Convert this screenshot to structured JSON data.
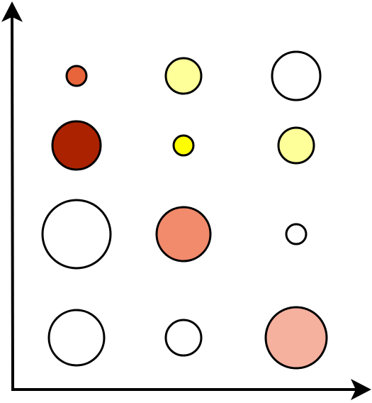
{
  "diagram": {
    "type": "bubble-grid",
    "rows": 4,
    "columns": 3,
    "axes": {
      "x_axis": {
        "has_arrow": true,
        "color": "#000000"
      },
      "y_axis": {
        "has_arrow": true,
        "color": "#000000"
      }
    },
    "bubbles": [
      {
        "row": 1,
        "column": 1,
        "fill": "#e8643a",
        "size": "small"
      },
      {
        "row": 1,
        "column": 2,
        "fill": "#ffff99",
        "size": "medium"
      },
      {
        "row": 1,
        "column": 3,
        "fill": "#ffffff",
        "size": "large"
      },
      {
        "row": 2,
        "column": 1,
        "fill": "#aa2200",
        "size": "large"
      },
      {
        "row": 2,
        "column": 2,
        "fill": "#ffff00",
        "size": "small"
      },
      {
        "row": 2,
        "column": 3,
        "fill": "#ffff99",
        "size": "medium"
      },
      {
        "row": 3,
        "column": 1,
        "fill": "#ffffff",
        "size": "extra-large"
      },
      {
        "row": 3,
        "column": 2,
        "fill": "#f28a6c",
        "size": "large"
      },
      {
        "row": 3,
        "column": 3,
        "fill": "#ffffff",
        "size": "small"
      },
      {
        "row": 4,
        "column": 1,
        "fill": "#ffffff",
        "size": "large"
      },
      {
        "row": 4,
        "column": 2,
        "fill": "#ffffff",
        "size": "medium"
      },
      {
        "row": 4,
        "column": 3,
        "fill": "#f5b09e",
        "size": "extra-large"
      }
    ]
  }
}
